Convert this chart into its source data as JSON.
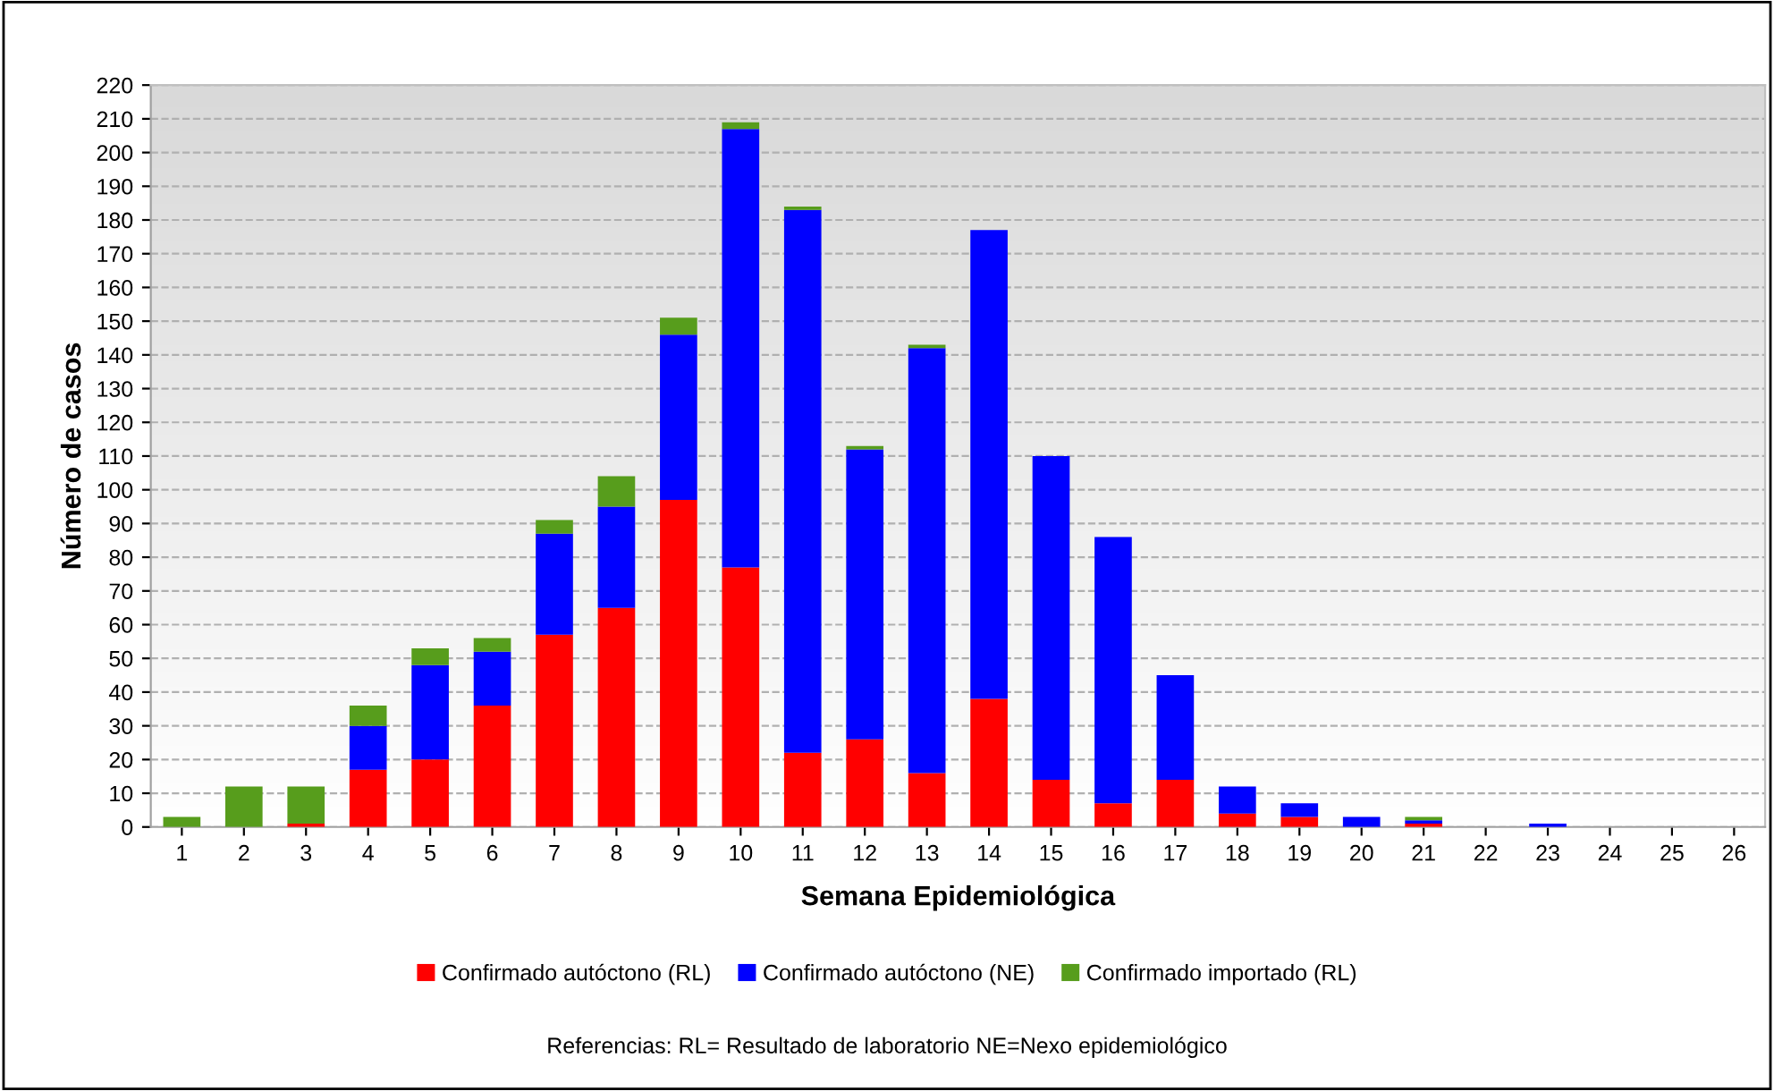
{
  "chart_data": {
    "type": "bar",
    "stacked": true,
    "xlabel": "Semana Epidemiológica",
    "ylabel": "Número de casos",
    "categories": [
      "1",
      "2",
      "3",
      "4",
      "5",
      "6",
      "7",
      "8",
      "9",
      "10",
      "11",
      "12",
      "13",
      "14",
      "15",
      "16",
      "17",
      "18",
      "19",
      "20",
      "21",
      "22",
      "23",
      "24",
      "25",
      "26"
    ],
    "series": [
      {
        "name": "Confirmado autóctono (RL)",
        "color": "#ff0000",
        "values": [
          0,
          0,
          1,
          17,
          20,
          36,
          57,
          65,
          97,
          77,
          22,
          26,
          16,
          38,
          14,
          7,
          14,
          4,
          3,
          0,
          1,
          0,
          0,
          0,
          0,
          0
        ]
      },
      {
        "name": "Confirmado autóctono (NE)",
        "color": "#0000ff",
        "values": [
          0,
          0,
          0,
          13,
          28,
          16,
          30,
          30,
          49,
          130,
          161,
          86,
          126,
          139,
          96,
          79,
          31,
          8,
          4,
          3,
          1,
          0,
          1,
          0,
          0,
          0
        ]
      },
      {
        "name": "Confirmado importado (RL)",
        "color": "#579d1c",
        "values": [
          3,
          12,
          11,
          6,
          5,
          4,
          4,
          9,
          5,
          2,
          1,
          1,
          1,
          0,
          0,
          0,
          0,
          0,
          0,
          0,
          1,
          0,
          0,
          0,
          0,
          0
        ]
      }
    ],
    "ylim": [
      0,
      220
    ],
    "yticks": [
      0,
      10,
      20,
      30,
      40,
      50,
      60,
      70,
      80,
      90,
      100,
      110,
      120,
      130,
      140,
      150,
      160,
      170,
      180,
      190,
      200,
      210,
      220
    ],
    "grid": "y",
    "legend": "bottom",
    "annotations": [
      "Referencias: RL= Resultado de laboratorio NE=Nexo epidemiológico"
    ]
  }
}
